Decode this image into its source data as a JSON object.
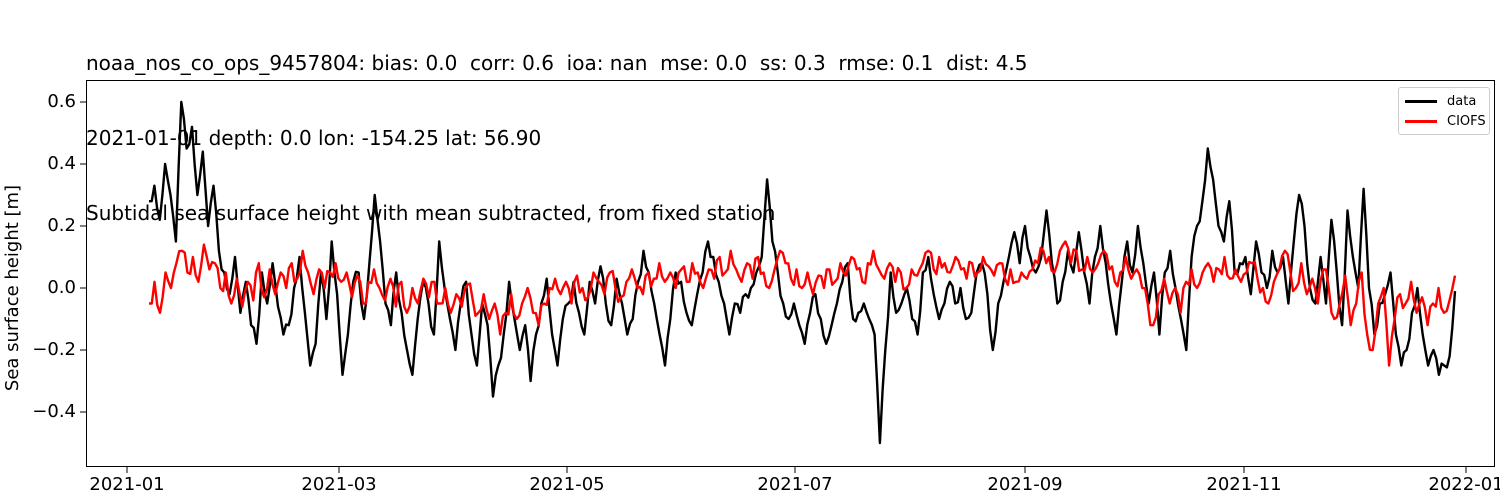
{
  "title": {
    "line1": "noaa_nos_co_ops_9457804: bias: 0.0  corr: 0.6  ioa: nan  mse: 0.0  ss: 0.3  rmse: 0.1  dist: 4.5",
    "line2": "2021-01-01 depth: 0.0 lon: -154.25 lat: 56.90",
    "line3": "Subtidal sea surface height with mean subtracted, from fixed station"
  },
  "legend": {
    "items": [
      {
        "label": "data",
        "color": "#000000"
      },
      {
        "label": "CIOFS",
        "color": "#ff0000"
      }
    ]
  },
  "chart_data": {
    "type": "line",
    "title": "noaa_nos_co_ops_9457804: bias: 0.0  corr: 0.6  ioa: nan  mse: 0.0  ss: 0.3  rmse: 0.1  dist: 4.5 / 2021-01-01 depth: 0.0 lon: -154.25 lat: 56.90 / Subtidal sea surface height with mean subtracted, from fixed station",
    "xlabel": "",
    "ylabel": "Sea surface height [m]",
    "ylim": [
      -0.57,
      0.67
    ],
    "xlim": [
      "2020-12-20",
      "2022-01-20"
    ],
    "yticks": [
      -0.4,
      -0.2,
      0.0,
      0.2,
      0.4,
      0.6
    ],
    "ytick_labels": [
      "−0.4",
      "−0.2",
      "0.0",
      "0.2",
      "0.4",
      "0.6"
    ],
    "xticks": [
      "2021-01",
      "2021-03",
      "2021-05",
      "2021-07",
      "2021-09",
      "2021-11",
      "2022-01"
    ],
    "grid": false,
    "legend_position": "upper right",
    "x_day_of_year_step": 3,
    "x_start_day": 6,
    "series": [
      {
        "name": "data",
        "color": "#000000",
        "values": [
          0.28,
          0.33,
          0.22,
          0.4,
          0.3,
          0.15,
          0.6,
          0.45,
          0.52,
          0.3,
          0.44,
          0.2,
          0.33,
          0.12,
          0.05,
          -0.02,
          0.1,
          -0.08,
          0.02,
          -0.12,
          -0.18,
          0.05,
          -0.05,
          0.08,
          -0.06,
          -0.15,
          -0.12,
          0.0,
          0.1,
          -0.08,
          -0.25,
          -0.18,
          0.05,
          -0.1,
          0.15,
          -0.02,
          -0.28,
          -0.15,
          0.02,
          0.05,
          -0.1,
          0.08,
          0.3,
          0.15,
          -0.05,
          -0.12,
          0.05,
          -0.08,
          -0.2,
          -0.28,
          -0.1,
          0.02,
          -0.05,
          -0.15,
          0.15,
          0.0,
          -0.1,
          -0.2,
          -0.05,
          0.02,
          -0.15,
          -0.25,
          -0.05,
          -0.12,
          -0.35,
          -0.25,
          -0.15,
          0.02,
          -0.1,
          -0.2,
          -0.12,
          -0.3,
          -0.15,
          -0.05,
          0.03,
          -0.15,
          -0.25,
          -0.1,
          -0.05,
          0.02,
          -0.08,
          -0.15,
          0.02,
          -0.05,
          0.07,
          -0.05,
          -0.12,
          0.03,
          -0.05,
          -0.15,
          -0.1,
          0.02,
          0.12,
          0.05,
          -0.05,
          -0.15,
          -0.25,
          -0.1,
          0.05,
          0.02,
          -0.08,
          -0.12,
          -0.02,
          0.05,
          0.15,
          0.1,
          0.02,
          -0.05,
          -0.15,
          -0.05,
          -0.08,
          -0.02,
          0.0,
          0.05,
          0.1,
          0.35,
          0.15,
          0.05,
          -0.05,
          -0.1,
          -0.05,
          -0.12,
          -0.18,
          -0.08,
          -0.02,
          -0.1,
          -0.18,
          -0.12,
          -0.05,
          0.02,
          0.08,
          -0.1,
          -0.08,
          -0.05,
          -0.1,
          -0.15,
          -0.5,
          -0.2,
          0.05,
          -0.08,
          -0.05,
          0.0,
          -0.1,
          -0.15,
          0.05,
          0.1,
          -0.02,
          -0.1,
          -0.05,
          0.02,
          -0.05,
          0.0,
          -0.1,
          -0.08,
          0.05,
          0.08,
          -0.02,
          -0.2,
          -0.05,
          0.02,
          0.1,
          0.18,
          0.08,
          0.2,
          0.1,
          0.05,
          0.1,
          0.25,
          0.08,
          -0.05,
          0.02,
          0.12,
          0.05,
          0.18,
          0.05,
          -0.05,
          0.1,
          0.2,
          0.08,
          -0.05,
          -0.15,
          0.02,
          0.15,
          0.05,
          0.2,
          0.08,
          -0.05,
          0.05,
          -0.15,
          0.05,
          0.12,
          0.0,
          -0.1,
          -0.2,
          0.1,
          0.2,
          0.28,
          0.45,
          0.35,
          0.2,
          0.15,
          0.28,
          0.05,
          0.08,
          0.1,
          -0.02,
          0.15,
          0.05,
          0.0,
          0.12,
          0.05,
          0.1,
          -0.05,
          0.15,
          0.3,
          0.2,
          0.0,
          -0.05,
          0.1,
          -0.05,
          0.22,
          0.05,
          -0.12,
          0.25,
          0.1,
          0.0,
          0.32,
          0.0,
          -0.15,
          -0.05,
          -0.02,
          0.05,
          -0.15,
          -0.25,
          -0.2,
          -0.08,
          0.0,
          -0.15,
          -0.25,
          -0.2,
          -0.28,
          -0.25,
          -0.22,
          -0.01
        ]
      },
      {
        "name": "CIOFS",
        "color": "#ff0000",
        "values": [
          -0.05,
          0.02,
          -0.08,
          0.05,
          0.0,
          0.08,
          0.12,
          0.05,
          0.1,
          0.02,
          0.14,
          0.06,
          0.08,
          0.0,
          0.05,
          -0.05,
          0.03,
          -0.06,
          0.02,
          -0.04,
          0.08,
          -0.03,
          0.06,
          -0.02,
          0.05,
          0.0,
          0.08,
          0.03,
          0.12,
          0.05,
          -0.02,
          0.06,
          0.0,
          0.05,
          0.08,
          0.02,
          0.05,
          -0.03,
          0.04,
          -0.05,
          0.02,
          0.06,
          0.0,
          -0.04,
          0.03,
          -0.06,
          0.02,
          -0.08,
          0.0,
          -0.05,
          0.03,
          -0.03,
          0.02,
          -0.05,
          0.0,
          -0.08,
          -0.02,
          -0.06,
          0.01,
          -0.04,
          -0.08,
          -0.02,
          -0.1,
          -0.05,
          -0.15,
          -0.08,
          -0.02,
          -0.1,
          -0.05,
          0.0,
          -0.08,
          -0.12,
          -0.05,
          0.0,
          0.03,
          -0.02,
          0.02,
          -0.05,
          0.04,
          0.0,
          -0.03,
          0.05,
          0.02,
          -0.02,
          0.05,
          0.0,
          -0.03,
          0.02,
          0.06,
          0.0,
          -0.02,
          0.05,
          0.03,
          0.08,
          0.02,
          0.05,
          0.0,
          0.06,
          0.02,
          0.08,
          0.05,
          0.0,
          0.06,
          0.03,
          0.1,
          0.05,
          0.12,
          0.06,
          0.02,
          0.08,
          0.03,
          0.1,
          0.05,
          0.0,
          0.06,
          0.12,
          0.08,
          0.03,
          0.06,
          0.0,
          0.05,
          -0.02,
          0.04,
          0.0,
          0.06,
          0.02,
          0.08,
          0.04,
          0.1,
          0.06,
          0.02,
          0.08,
          0.12,
          0.06,
          0.03,
          0.08,
          0.02,
          0.05,
          0.0,
          0.06,
          0.04,
          0.08,
          0.12,
          0.06,
          0.1,
          0.08,
          0.05,
          0.1,
          0.06,
          0.03,
          0.08,
          0.05,
          0.1,
          0.07,
          0.04,
          0.08,
          0.03,
          0.06,
          0.02,
          0.05,
          0.03,
          0.06,
          0.08,
          0.12,
          0.1,
          0.05,
          0.12,
          0.15,
          0.08,
          0.12,
          0.06,
          0.1,
          0.05,
          0.08,
          0.12,
          0.06,
          0.02,
          0.05,
          0.1,
          0.03,
          0.06,
          0.0,
          -0.05,
          -0.12,
          -0.02,
          0.03,
          -0.05,
          0.0,
          -0.08,
          0.02,
          0.06,
          0.0,
          0.05,
          0.08,
          0.02,
          0.06,
          0.1,
          0.03,
          0.06,
          0.02,
          0.05,
          0.08,
          0.03,
          0.0,
          -0.05,
          0.02,
          0.06,
          0.12,
          0.05,
          0.0,
          0.08,
          -0.02,
          0.03,
          -0.05,
          0.06,
          0.0,
          -0.1,
          -0.05,
          0.04,
          -0.12,
          -0.05,
          0.05,
          -0.15,
          -0.2,
          -0.05,
          0.0,
          -0.25,
          -0.1,
          -0.02,
          -0.05,
          0.02,
          -0.08,
          -0.03,
          -0.12,
          -0.05,
          0.0,
          -0.08,
          -0.04,
          0.04
        ]
      }
    ]
  }
}
